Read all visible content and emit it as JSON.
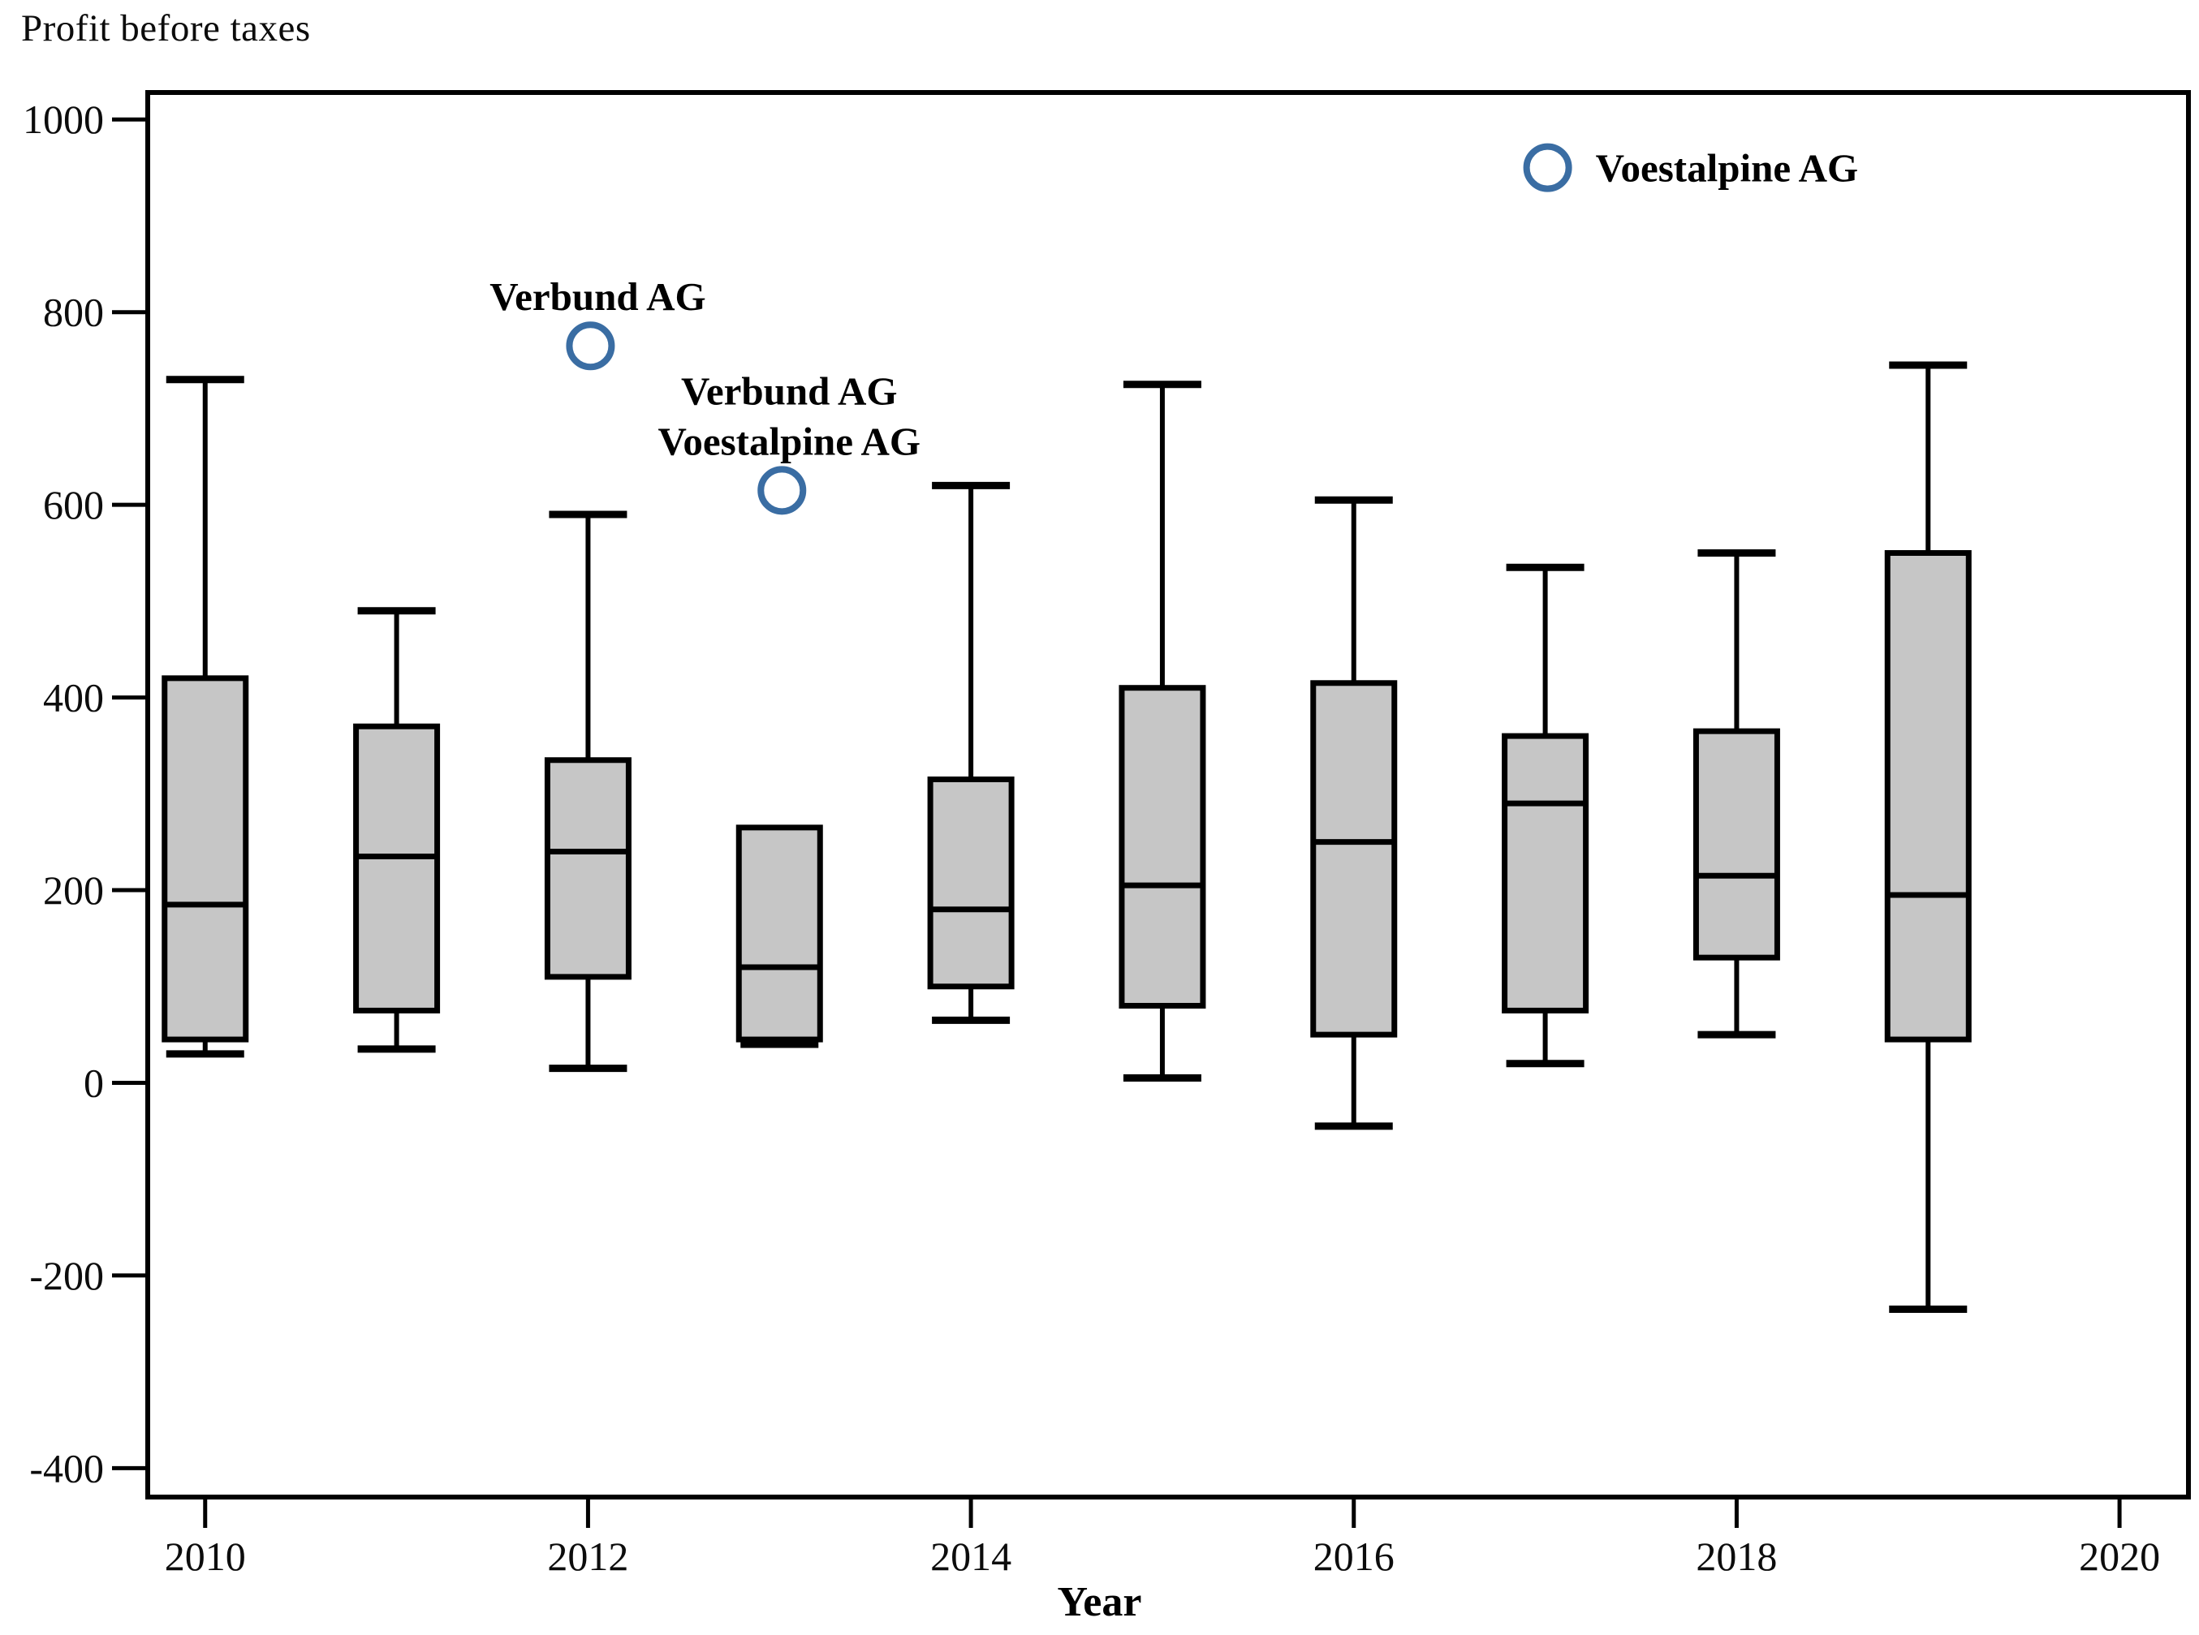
{
  "chart_data": {
    "type": "boxplot",
    "title": "Profit before taxes",
    "xlabel": "Year",
    "x_tick_labels": [
      "2010",
      "2012",
      "2014",
      "2016",
      "2018",
      "2020"
    ],
    "x_tick_years": [
      2010,
      2012,
      2014,
      2016,
      2018,
      2020
    ],
    "y_tick_labels": [
      "1000",
      "800",
      "600",
      "400",
      "200",
      "0",
      "-200",
      "-400"
    ],
    "y_tick_values": [
      1000,
      800,
      600,
      400,
      200,
      0,
      -200,
      -400
    ],
    "xlim": [
      2009.7,
      2020.36
    ],
    "ylim": [
      -430,
      1028
    ],
    "grid": false,
    "legend": "none",
    "colors": {
      "box_fill": "#c6c6c6",
      "box_stroke": "#000000",
      "axis_stroke": "#000000",
      "text": "#0c0c0c",
      "outlier_ring": "#3a6da3"
    },
    "series": [
      {
        "year": 2010,
        "whisker_low": 30,
        "q1": 45,
        "median": 185,
        "q3": 420,
        "whisker_high": 730,
        "outliers": []
      },
      {
        "year": 2011,
        "whisker_low": 35,
        "q1": 75,
        "median": 235,
        "q3": 370,
        "whisker_high": 490,
        "outliers": []
      },
      {
        "year": 2012,
        "whisker_low": 15,
        "q1": 110,
        "median": 240,
        "q3": 335,
        "whisker_high": 590,
        "outliers": [
          {
            "value": 765,
            "label_lines": [
              "Verbund AG"
            ],
            "label_pos": "above"
          }
        ]
      },
      {
        "year": 2013,
        "whisker_low": 40,
        "q1": 45,
        "median": 120,
        "q3": 265,
        "whisker_high": 265,
        "outliers": [
          {
            "value": 615,
            "label_lines": [
              "Verbund AG",
              "Voestalpine AG"
            ],
            "label_pos": "above"
          }
        ]
      },
      {
        "year": 2014,
        "whisker_low": 65,
        "q1": 100,
        "median": 180,
        "q3": 315,
        "whisker_high": 620,
        "outliers": []
      },
      {
        "year": 2015,
        "whisker_low": 5,
        "q1": 80,
        "median": 205,
        "q3": 410,
        "whisker_high": 725,
        "outliers": []
      },
      {
        "year": 2016,
        "whisker_low": -45,
        "q1": 50,
        "median": 250,
        "q3": 415,
        "whisker_high": 605,
        "outliers": []
      },
      {
        "year": 2017,
        "whisker_low": 20,
        "q1": 75,
        "median": 290,
        "q3": 360,
        "whisker_high": 535,
        "outliers": [
          {
            "value": 950,
            "label_lines": [
              "Voestalpine AG"
            ],
            "label_pos": "right"
          }
        ]
      },
      {
        "year": 2018,
        "whisker_low": 50,
        "q1": 130,
        "median": 215,
        "q3": 365,
        "whisker_high": 550,
        "outliers": []
      },
      {
        "year": 2019,
        "whisker_low": -235,
        "q1": 45,
        "median": 195,
        "q3": 550,
        "whisker_high": 745,
        "outliers": []
      }
    ]
  }
}
